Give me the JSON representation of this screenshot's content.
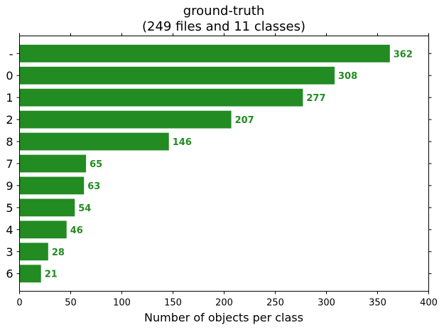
{
  "chart_data": {
    "type": "bar",
    "orientation": "horizontal",
    "title_line1": "ground-truth",
    "title_line2": "(249 files and 11 classes)",
    "xlabel": "Number of objects per class",
    "ylabel": "",
    "xlim": [
      0,
      400
    ],
    "xticks": [
      0,
      50,
      100,
      150,
      200,
      250,
      300,
      350,
      400
    ],
    "categories": [
      "-",
      "0",
      "1",
      "2",
      "8",
      "7",
      "9",
      "5",
      "4",
      "3",
      "6"
    ],
    "values": [
      362,
      308,
      277,
      207,
      146,
      65,
      63,
      54,
      46,
      28,
      21
    ],
    "bar_color": "#228b22",
    "label_color": "#228b22",
    "grid": false,
    "legend": "none"
  }
}
